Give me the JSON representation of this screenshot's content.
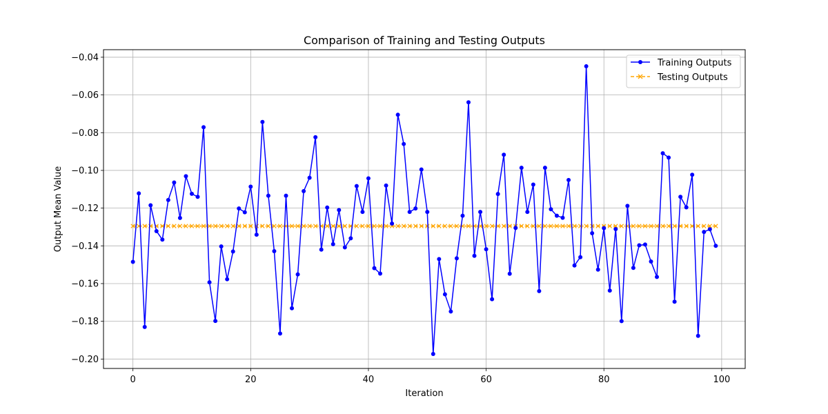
{
  "chart_data": {
    "type": "line",
    "title": "Comparison of Training and Testing Outputs",
    "xlabel": "Iteration",
    "ylabel": "Output Mean Value",
    "xlim": [
      -5,
      104
    ],
    "ylim": [
      -0.205,
      -0.036
    ],
    "xticks": [
      0,
      20,
      40,
      60,
      80,
      100
    ],
    "yticks": [
      -0.2,
      -0.18,
      -0.16,
      -0.14,
      -0.12,
      -0.1,
      -0.08,
      -0.06,
      -0.04
    ],
    "ytick_labels": [
      "−0.20",
      "−0.18",
      "−0.16",
      "−0.14",
      "−0.12",
      "−0.10",
      "−0.08",
      "−0.06",
      "−0.04"
    ],
    "grid": true,
    "legend_position": "top-right",
    "series": [
      {
        "name": "Training Outputs",
        "color": "#0000ff",
        "marker": "circle",
        "line_style": "solid",
        "values": [
          -0.1485,
          -0.1122,
          -0.183,
          -0.1185,
          -0.1322,
          -0.1367,
          -0.1157,
          -0.1064,
          -0.1252,
          -0.1031,
          -0.1124,
          -0.114,
          -0.0771,
          -0.1593,
          -0.1798,
          -0.1403,
          -0.1577,
          -0.143,
          -0.1202,
          -0.1222,
          -0.1086,
          -0.1341,
          -0.0743,
          -0.1134,
          -0.1428,
          -0.1865,
          -0.1134,
          -0.1731,
          -0.1551,
          -0.111,
          -0.1039,
          -0.0824,
          -0.142,
          -0.1197,
          -0.1391,
          -0.121,
          -0.1408,
          -0.136,
          -0.1083,
          -0.122,
          -0.1042,
          -0.1518,
          -0.1547,
          -0.108,
          -0.1282,
          -0.0705,
          -0.086,
          -0.122,
          -0.1202,
          -0.0995,
          -0.122,
          -0.1973,
          -0.147,
          -0.1657,
          -0.1748,
          -0.1466,
          -0.124,
          -0.0639,
          -0.1453,
          -0.122,
          -0.1418,
          -0.1683,
          -0.1125,
          -0.0917,
          -0.1548,
          -0.1305,
          -0.0986,
          -0.122,
          -0.1075,
          -0.164,
          -0.0986,
          -0.1206,
          -0.124,
          -0.1251,
          -0.1051,
          -0.1504,
          -0.146,
          -0.0448,
          -0.1333,
          -0.1526,
          -0.1306,
          -0.1637,
          -0.1311,
          -0.1799,
          -0.1188,
          -0.1517,
          -0.1397,
          -0.1393,
          -0.1483,
          -0.1565,
          -0.0909,
          -0.0932,
          -0.1696,
          -0.114,
          -0.1196,
          -0.1023,
          -0.1877,
          -0.1326,
          -0.1312,
          -0.14
        ]
      },
      {
        "name": "Testing Outputs",
        "color": "#ffa500",
        "marker": "x",
        "line_style": "dashed",
        "values": [
          -0.1295,
          -0.1295,
          -0.1295,
          -0.1295,
          -0.1295,
          -0.1295,
          -0.1295,
          -0.1295,
          -0.1295,
          -0.1295,
          -0.1295,
          -0.1295,
          -0.1295,
          -0.1295,
          -0.1295,
          -0.1295,
          -0.1295,
          -0.1295,
          -0.1295,
          -0.1295,
          -0.1295,
          -0.1295,
          -0.1295,
          -0.1295,
          -0.1295,
          -0.1295,
          -0.1295,
          -0.1295,
          -0.1295,
          -0.1295,
          -0.1295,
          -0.1295,
          -0.1295,
          -0.1295,
          -0.1295,
          -0.1295,
          -0.1295,
          -0.1295,
          -0.1295,
          -0.1295,
          -0.1295,
          -0.1295,
          -0.1295,
          -0.1295,
          -0.1295,
          -0.1295,
          -0.1295,
          -0.1295,
          -0.1295,
          -0.1295,
          -0.1295,
          -0.1295,
          -0.1295,
          -0.1295,
          -0.1295,
          -0.1295,
          -0.1295,
          -0.1295,
          -0.1295,
          -0.1295,
          -0.1295,
          -0.1295,
          -0.1295,
          -0.1295,
          -0.1295,
          -0.1295,
          -0.1295,
          -0.1295,
          -0.1295,
          -0.1295,
          -0.1295,
          -0.1295,
          -0.1295,
          -0.1295,
          -0.1295,
          -0.1295,
          -0.1295,
          -0.1295,
          -0.1295,
          -0.1295,
          -0.1295,
          -0.1295,
          -0.1295,
          -0.1295,
          -0.1295,
          -0.1295,
          -0.1295,
          -0.1295,
          -0.1295,
          -0.1295,
          -0.1295,
          -0.1295,
          -0.1295,
          -0.1295,
          -0.1295,
          -0.1295,
          -0.1295,
          -0.1295,
          -0.1295,
          -0.1295
        ]
      }
    ]
  }
}
